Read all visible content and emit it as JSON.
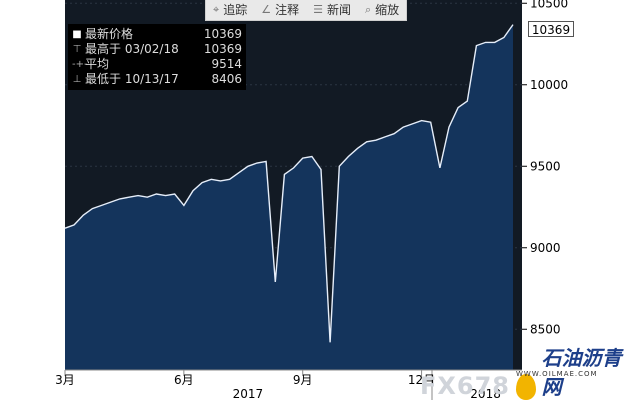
{
  "toolbar": {
    "buttons": [
      {
        "icon": "crosshair-icon",
        "glyph": "⌖",
        "label": "追踪"
      },
      {
        "icon": "pencil-icon",
        "glyph": "∠",
        "label": "注释"
      },
      {
        "icon": "news-icon",
        "glyph": "☰",
        "label": "新闻"
      },
      {
        "icon": "zoom-icon",
        "glyph": "⌕",
        "label": "缩放"
      }
    ]
  },
  "legend": {
    "rows": [
      {
        "marker": "■",
        "label": "最新价格",
        "value": "10369"
      },
      {
        "marker": "⊤",
        "label": "最高于 03/02/18",
        "value": "10369"
      },
      {
        "marker": "-+-",
        "label": "平均",
        "value": "9514"
      },
      {
        "marker": "⊥",
        "label": "最低于 10/13/17",
        "value": "8406"
      }
    ]
  },
  "last_price_badge": "10369",
  "watermark": {
    "brand": "FX678",
    "name": "石油沥青网",
    "url": "WWW.OILMAE.COM"
  },
  "colors": {
    "plot_bg": "#121a24",
    "area_fill": "#14345c",
    "line": "#e6eefa",
    "axis_bg": "#ffffff"
  },
  "chart_data": {
    "type": "area",
    "ylim": [
      8250,
      10520
    ],
    "yticks": [
      8500,
      9000,
      9500,
      10000,
      10500
    ],
    "xticks": [
      {
        "label": "3月",
        "x": 0
      },
      {
        "label": "6月",
        "x": 13
      },
      {
        "label": "9月",
        "x": 26
      },
      {
        "label": "12月",
        "x": 39
      }
    ],
    "year_labels": [
      {
        "label": "2017",
        "x": 20
      },
      {
        "label": "2018",
        "x": 46
      }
    ],
    "values": [
      9120,
      9140,
      9200,
      9240,
      9260,
      9280,
      9300,
      9310,
      9320,
      9310,
      9330,
      9320,
      9330,
      9260,
      9350,
      9400,
      9420,
      9410,
      9420,
      9460,
      9500,
      9520,
      9530,
      8790,
      9450,
      9490,
      9550,
      9560,
      9480,
      8420,
      9500,
      9560,
      9610,
      9650,
      9660,
      9680,
      9700,
      9740,
      9760,
      9780,
      9770,
      9490,
      9740,
      9860,
      9900,
      10240,
      10260,
      10260,
      10290,
      10369
    ]
  }
}
